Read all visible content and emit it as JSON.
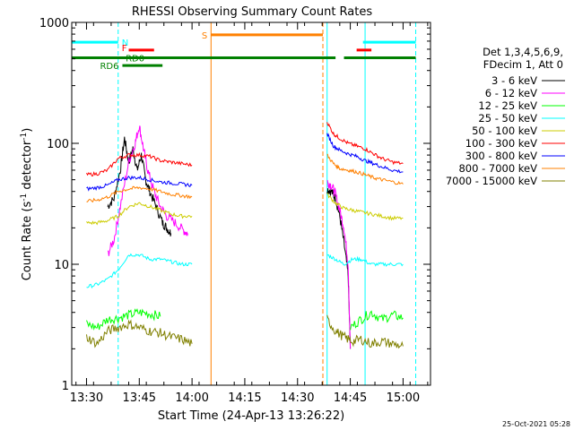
{
  "chart_data": {
    "type": "line",
    "title": "RHESSI Observing Summary Count Rates",
    "xlabel": "Start Time (24-Apr-13 13:26:22)",
    "ylabel_main": "Count Rate (s",
    "ylabel_sup1": "-1",
    "ylabel_mid": " detector",
    "ylabel_sup2": "-1",
    "ylabel_end": ")",
    "yscale": "log",
    "ylim": [
      1,
      1000
    ],
    "xlim_minutes": [
      13.43,
      15.13
    ],
    "x_ticks": [
      {
        "label": "13:30",
        "t": 13.5
      },
      {
        "label": "13:45",
        "t": 13.75
      },
      {
        "label": "14:00",
        "t": 14.0
      },
      {
        "label": "14:15",
        "t": 14.25
      },
      {
        "label": "14:30",
        "t": 14.5
      },
      {
        "label": "14:45",
        "t": 14.75
      },
      {
        "label": "15:00",
        "t": 15.0
      }
    ],
    "y_ticks": [
      {
        "label": "1",
        "v": 1
      },
      {
        "label": "10",
        "v": 10
      },
      {
        "label": "100",
        "v": 100
      },
      {
        "label": "1000",
        "v": 1000
      }
    ],
    "legend_header": [
      "Det 1,3,4,5,6,9,",
      "FDecim 1, Att 0"
    ],
    "series": [
      {
        "name": "3 - 6 keV",
        "color": "#000000",
        "seg1": [
          [
            13.6,
            30
          ],
          [
            13.63,
            35
          ],
          [
            13.66,
            60
          ],
          [
            13.68,
            110
          ],
          [
            13.7,
            70
          ],
          [
            13.72,
            90
          ],
          [
            13.74,
            60
          ],
          [
            13.76,
            80
          ],
          [
            13.78,
            50
          ],
          [
            13.8,
            40
          ],
          [
            13.83,
            30
          ],
          [
            13.86,
            22
          ],
          [
            13.88,
            20
          ],
          [
            13.9,
            18
          ]
        ],
        "seg2": [
          [
            14.64,
            42
          ],
          [
            14.66,
            40
          ],
          [
            14.68,
            35
          ],
          [
            14.7,
            25
          ],
          [
            14.72,
            15
          ],
          [
            14.74,
            8
          ],
          [
            14.75,
            2
          ]
        ]
      },
      {
        "name": "6 - 12 keV",
        "color": "#ff00ff",
        "seg1": [
          [
            13.6,
            12
          ],
          [
            13.63,
            16
          ],
          [
            13.66,
            30
          ],
          [
            13.7,
            70
          ],
          [
            13.73,
            100
          ],
          [
            13.75,
            140
          ],
          [
            13.77,
            90
          ],
          [
            13.79,
            60
          ],
          [
            13.82,
            40
          ],
          [
            13.85,
            30
          ],
          [
            13.88,
            25
          ],
          [
            13.92,
            22
          ],
          [
            13.96,
            19
          ],
          [
            13.98,
            18
          ]
        ],
        "seg2": [
          [
            14.64,
            48
          ],
          [
            14.66,
            45
          ],
          [
            14.68,
            38
          ],
          [
            14.7,
            28
          ],
          [
            14.72,
            20
          ],
          [
            14.74,
            10
          ],
          [
            14.75,
            2
          ]
        ]
      },
      {
        "name": "12 - 25 keV",
        "color": "#00ff00",
        "seg1": [
          [
            13.5,
            3.2
          ],
          [
            13.55,
            3.0
          ],
          [
            13.6,
            3.5
          ],
          [
            13.65,
            3.6
          ],
          [
            13.7,
            3.8
          ],
          [
            13.75,
            4.0
          ],
          [
            13.8,
            3.9
          ],
          [
            13.85,
            3.7
          ]
        ],
        "seg2": [
          [
            14.75,
            3.0
          ],
          [
            14.8,
            3.5
          ],
          [
            14.85,
            4.0
          ],
          [
            14.9,
            3.5
          ],
          [
            14.95,
            3.8
          ],
          [
            15.0,
            3.6
          ]
        ]
      },
      {
        "name": "25 - 50 keV",
        "color": "#00ffff",
        "seg1": [
          [
            13.5,
            6.5
          ],
          [
            13.55,
            6.8
          ],
          [
            13.6,
            7.5
          ],
          [
            13.65,
            9
          ],
          [
            13.7,
            12
          ],
          [
            13.75,
            12
          ],
          [
            13.8,
            11
          ],
          [
            13.85,
            11
          ],
          [
            13.9,
            10.5
          ],
          [
            13.95,
            10
          ],
          [
            14.0,
            10
          ]
        ],
        "seg2": [
          [
            14.64,
            12
          ],
          [
            14.68,
            11
          ],
          [
            14.72,
            10
          ],
          [
            14.76,
            11
          ],
          [
            14.8,
            11
          ],
          [
            14.85,
            10
          ],
          [
            14.9,
            10
          ],
          [
            14.95,
            10
          ],
          [
            15.0,
            10
          ]
        ]
      },
      {
        "name": "50 - 100 keV",
        "color": "#cccc00",
        "seg1": [
          [
            13.5,
            22
          ],
          [
            13.55,
            22
          ],
          [
            13.6,
            23
          ],
          [
            13.65,
            25
          ],
          [
            13.7,
            30
          ],
          [
            13.75,
            32
          ],
          [
            13.8,
            30
          ],
          [
            13.85,
            28
          ],
          [
            13.9,
            26
          ],
          [
            13.95,
            25
          ],
          [
            14.0,
            25
          ]
        ],
        "seg2": [
          [
            14.64,
            38
          ],
          [
            14.68,
            32
          ],
          [
            14.72,
            29
          ],
          [
            14.76,
            28
          ],
          [
            14.8,
            27
          ],
          [
            14.85,
            26
          ],
          [
            14.9,
            25
          ],
          [
            14.95,
            24
          ],
          [
            15.0,
            24
          ]
        ]
      },
      {
        "name": "100 - 300 keV",
        "color": "#ff0000",
        "seg1": [
          [
            13.5,
            55
          ],
          [
            13.55,
            56
          ],
          [
            13.6,
            60
          ],
          [
            13.65,
            75
          ],
          [
            13.7,
            80
          ],
          [
            13.75,
            80
          ],
          [
            13.8,
            78
          ],
          [
            13.85,
            72
          ],
          [
            13.9,
            70
          ],
          [
            13.95,
            68
          ],
          [
            14.0,
            66
          ]
        ],
        "seg2": [
          [
            14.64,
            150
          ],
          [
            14.67,
            120
          ],
          [
            14.7,
            110
          ],
          [
            14.74,
            100
          ],
          [
            14.78,
            95
          ],
          [
            14.82,
            90
          ],
          [
            14.86,
            82
          ],
          [
            14.9,
            75
          ],
          [
            14.95,
            70
          ],
          [
            15.0,
            68
          ]
        ]
      },
      {
        "name": "300 - 800 keV",
        "color": "#0000ff",
        "seg1": [
          [
            13.5,
            42
          ],
          [
            13.55,
            43
          ],
          [
            13.6,
            45
          ],
          [
            13.65,
            50
          ],
          [
            13.7,
            52
          ],
          [
            13.75,
            52
          ],
          [
            13.8,
            50
          ],
          [
            13.85,
            48
          ],
          [
            13.9,
            47
          ],
          [
            13.95,
            46
          ],
          [
            14.0,
            45
          ]
        ],
        "seg2": [
          [
            14.64,
            120
          ],
          [
            14.67,
            95
          ],
          [
            14.7,
            88
          ],
          [
            14.74,
            82
          ],
          [
            14.78,
            78
          ],
          [
            14.82,
            72
          ],
          [
            14.86,
            68
          ],
          [
            14.9,
            64
          ],
          [
            14.95,
            60
          ],
          [
            15.0,
            58
          ]
        ]
      },
      {
        "name": "800 - 7000 keV",
        "color": "#ff8000",
        "seg1": [
          [
            13.5,
            33
          ],
          [
            13.55,
            34
          ],
          [
            13.6,
            36
          ],
          [
            13.65,
            40
          ],
          [
            13.7,
            42
          ],
          [
            13.75,
            43
          ],
          [
            13.8,
            42
          ],
          [
            13.85,
            40
          ],
          [
            13.9,
            38
          ],
          [
            13.95,
            37
          ],
          [
            14.0,
            36
          ]
        ],
        "seg2": [
          [
            14.64,
            80
          ],
          [
            14.67,
            68
          ],
          [
            14.7,
            62
          ],
          [
            14.74,
            60
          ],
          [
            14.78,
            58
          ],
          [
            14.82,
            55
          ],
          [
            14.86,
            52
          ],
          [
            14.9,
            50
          ],
          [
            14.95,
            48
          ],
          [
            15.0,
            46
          ]
        ]
      },
      {
        "name": "7000 - 15000 keV",
        "color": "#808000",
        "seg1": [
          [
            13.5,
            2.5
          ],
          [
            13.55,
            2.2
          ],
          [
            13.6,
            2.8
          ],
          [
            13.65,
            3.0
          ],
          [
            13.7,
            3.2
          ],
          [
            13.75,
            3.0
          ],
          [
            13.8,
            2.8
          ],
          [
            13.85,
            2.7
          ],
          [
            13.9,
            2.5
          ],
          [
            13.95,
            2.4
          ],
          [
            14.0,
            2.2
          ]
        ],
        "seg2": [
          [
            14.64,
            3.5
          ],
          [
            14.68,
            2.8
          ],
          [
            14.72,
            2.5
          ],
          [
            14.76,
            2.3
          ],
          [
            14.8,
            2.4
          ],
          [
            14.85,
            2.2
          ],
          [
            14.9,
            2.3
          ],
          [
            14.95,
            2.2
          ],
          [
            15.0,
            2.1
          ]
        ]
      }
    ],
    "flags": [
      {
        "label": "N",
        "color": "#00ffff",
        "t0": 13.43,
        "t1": 13.65,
        "y": 685
      },
      {
        "label": "N",
        "color": "#00ffff",
        "t0": 14.81,
        "t1": 15.06,
        "y": 685
      },
      {
        "label": "F",
        "color": "#ff0000",
        "t0": 13.7,
        "t1": 13.82,
        "y": 590
      },
      {
        "label": "F",
        "color": "#ff0000",
        "t0": 14.78,
        "t1": 14.85,
        "y": 590
      },
      {
        "label": "S",
        "color": "#ff8000",
        "t0": 14.09,
        "t1": 14.62,
        "y": 790
      },
      {
        "label": "RD0",
        "color": "#008000",
        "t0": 13.43,
        "t1": 14.68,
        "y": 510
      },
      {
        "label": "RD0",
        "color": "#008000",
        "t0": 14.72,
        "t1": 15.06,
        "y": 510
      },
      {
        "label": "RD6",
        "color": "#008000",
        "t0": 13.67,
        "t1": 13.86,
        "y": 440
      }
    ],
    "vlines": [
      {
        "t": 13.43,
        "color": "#00ffff",
        "style": "solid"
      },
      {
        "t": 13.65,
        "color": "#00ffff",
        "style": "dashed"
      },
      {
        "t": 14.09,
        "color": "#ff8000",
        "style": "solid"
      },
      {
        "t": 14.62,
        "color": "#ff8000",
        "style": "dashed"
      },
      {
        "t": 14.64,
        "color": "#00ffff",
        "style": "solid"
      },
      {
        "t": 14.82,
        "color": "#00ffff",
        "style": "solid"
      },
      {
        "t": 15.06,
        "color": "#00ffff",
        "style": "dashed"
      }
    ],
    "timestamp": "25-Oct-2021 05:28"
  }
}
